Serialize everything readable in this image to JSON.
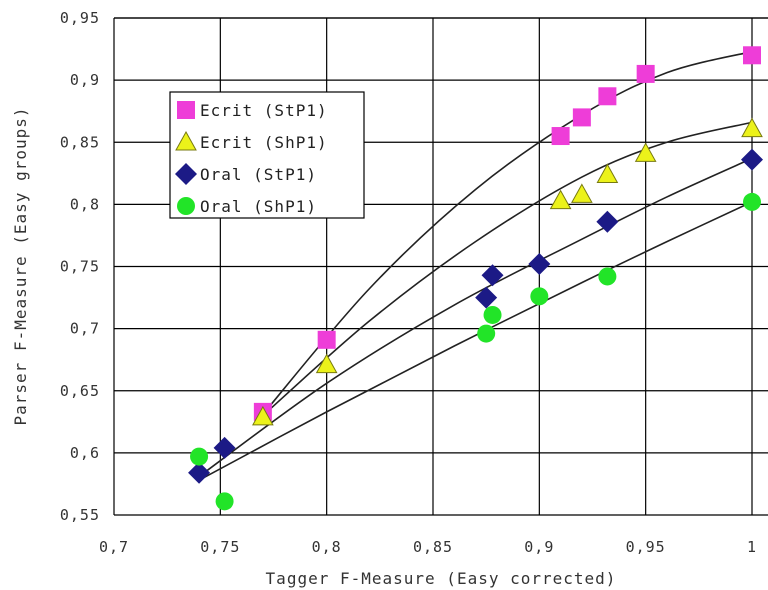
{
  "chart_data": {
    "type": "scatter",
    "title": "",
    "xlabel": "Tagger F-Measure (Easy corrected)",
    "ylabel": "Parser F-Measure (Easy groups)",
    "xlim": [
      0.7,
      1.0
    ],
    "ylim": [
      0.55,
      0.95
    ],
    "xticks": [
      0.7,
      0.75,
      0.8,
      0.85,
      0.9,
      0.95,
      1.0
    ],
    "yticks": [
      0.55,
      0.6,
      0.65,
      0.7,
      0.75,
      0.8,
      0.85,
      0.9,
      0.95
    ],
    "xtick_labels": [
      "0,7",
      "0,75",
      "0,8",
      "0,85",
      "0,9",
      "0,95",
      "1"
    ],
    "ytick_labels": [
      "0,55",
      "0,6",
      "0,65",
      "0,7",
      "0,75",
      "0,8",
      "0,85",
      "0,9",
      "0,95"
    ],
    "grid": true,
    "legend_position": "top-left",
    "series": [
      {
        "name": "Ecrit (StP1)",
        "marker": "square",
        "color": "#ee3dd8",
        "points": [
          [
            0.77,
            0.633
          ],
          [
            0.8,
            0.691
          ],
          [
            0.91,
            0.855
          ],
          [
            0.92,
            0.87
          ],
          [
            0.932,
            0.887
          ],
          [
            0.95,
            0.905
          ],
          [
            1.0,
            0.92
          ]
        ],
        "trend": [
          [
            0.77,
            0.631
          ],
          [
            0.82,
            0.732
          ],
          [
            0.87,
            0.812
          ],
          [
            0.92,
            0.872
          ],
          [
            0.96,
            0.906
          ],
          [
            1.0,
            0.923
          ]
        ]
      },
      {
        "name": "Ecrit (ShP1)",
        "marker": "triangle",
        "color": "#ecf21a",
        "points": [
          [
            0.77,
            0.629
          ],
          [
            0.8,
            0.671
          ],
          [
            0.91,
            0.803
          ],
          [
            0.92,
            0.808
          ],
          [
            0.932,
            0.824
          ],
          [
            0.95,
            0.841
          ],
          [
            1.0,
            0.861
          ]
        ],
        "trend": [
          [
            0.77,
            0.63
          ],
          [
            0.82,
            0.706
          ],
          [
            0.87,
            0.77
          ],
          [
            0.92,
            0.822
          ],
          [
            0.96,
            0.85
          ],
          [
            1.0,
            0.866
          ]
        ]
      },
      {
        "name": "Oral (StP1)",
        "marker": "diamond",
        "color": "#1c1a86",
        "points": [
          [
            0.74,
            0.584
          ],
          [
            0.752,
            0.604
          ],
          [
            0.875,
            0.725
          ],
          [
            0.878,
            0.743
          ],
          [
            0.9,
            0.752
          ],
          [
            0.932,
            0.786
          ],
          [
            1.0,
            0.836
          ]
        ],
        "trend": [
          [
            0.74,
            0.581
          ],
          [
            0.8,
            0.656
          ],
          [
            0.86,
            0.719
          ],
          [
            0.92,
            0.772
          ],
          [
            0.96,
            0.806
          ],
          [
            1.0,
            0.837
          ]
        ]
      },
      {
        "name": "Oral (ShP1)",
        "marker": "circle",
        "color": "#22e428",
        "points": [
          [
            0.74,
            0.597
          ],
          [
            0.752,
            0.561
          ],
          [
            0.875,
            0.696
          ],
          [
            0.878,
            0.711
          ],
          [
            0.9,
            0.726
          ],
          [
            0.932,
            0.742
          ],
          [
            1.0,
            0.802
          ]
        ],
        "trend": [
          [
            0.74,
            0.578
          ],
          [
            0.8,
            0.633
          ],
          [
            0.86,
            0.686
          ],
          [
            0.92,
            0.737
          ],
          [
            0.96,
            0.77
          ],
          [
            1.0,
            0.802
          ]
        ]
      }
    ]
  }
}
